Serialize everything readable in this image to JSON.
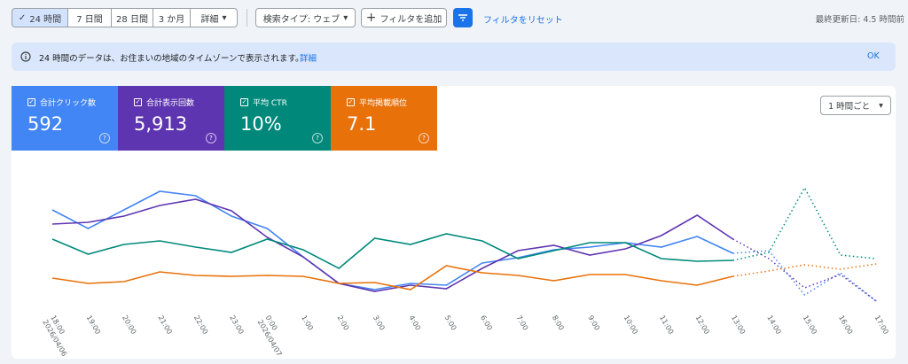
{
  "toolbar": {
    "ranges": [
      "24 時間",
      "7 日間",
      "28 日間",
      "3 か月"
    ],
    "more": "詳細",
    "search_type": "検索タイプ: ウェブ",
    "add_filter": "フィルタを追加",
    "reset": "フィルタをリセット",
    "last_updated": "最終更新日: 4.5 時間前"
  },
  "banner": {
    "text": "24 時間のデータは、お住まいの地域のタイムゾーンで表示されます。",
    "link": "詳細",
    "ok": "OK"
  },
  "metrics": [
    {
      "label": "合計クリック数",
      "value": "592",
      "color": "#4285f4"
    },
    {
      "label": "合計表示回数",
      "value": "5,913",
      "color": "#5e35b1"
    },
    {
      "label": "平均 CTR",
      "value": "10%",
      "color": "#00897b"
    },
    {
      "label": "平均掲載順位",
      "value": "7.1",
      "color": "#e8710a"
    }
  ],
  "interval": "1 時間ごと",
  "chart_data": {
    "type": "line",
    "categories": [
      "18:00",
      "19:00",
      "20:00",
      "21:00",
      "22:00",
      "23:00",
      "0:00",
      "1:00",
      "2:00",
      "3:00",
      "4:00",
      "5:00",
      "6:00",
      "7:00",
      "8:00",
      "9:00",
      "10:00",
      "11:00",
      "12:00",
      "13:00",
      "14:00",
      "15:00",
      "16:00",
      "17:00"
    ],
    "sublabels": [
      "2026/04/06",
      null,
      null,
      null,
      null,
      null,
      "2026/04/07",
      null,
      null,
      null,
      null,
      null,
      null,
      null,
      null,
      null,
      null,
      null,
      null,
      null,
      null,
      null,
      null,
      null
    ],
    "series": [
      {
        "color": "#4285f4",
        "values": [
          123,
          102,
          123,
          144,
          139,
          116,
          102,
          70,
          40,
          33,
          40,
          38,
          63,
          69,
          78,
          81,
          86,
          81,
          93,
          74,
          77,
          27,
          52,
          20
        ]
      },
      {
        "color": "#5e35b1",
        "values": [
          107,
          109,
          116,
          128,
          135,
          122,
          92,
          70,
          40,
          31,
          38,
          34,
          57,
          77,
          83,
          72,
          79,
          94,
          117,
          90,
          68,
          35,
          50,
          20
        ]
      },
      {
        "color": "#00897b",
        "values": [
          90,
          73,
          84,
          88,
          81,
          75,
          90,
          78,
          57,
          91,
          84,
          96,
          88,
          68,
          77,
          86,
          86,
          68,
          65,
          66,
          75,
          148,
          72,
          68
        ]
      },
      {
        "color": "#e8710a",
        "values": [
          46,
          40,
          42,
          53,
          49,
          48,
          49,
          48,
          40,
          41,
          33,
          60,
          52,
          49,
          43,
          50,
          50,
          43,
          38,
          48,
          54,
          61,
          56,
          62
        ]
      }
    ]
  }
}
